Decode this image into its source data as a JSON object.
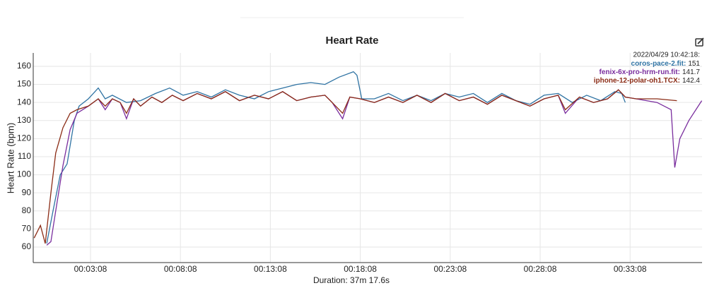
{
  "chart_data": {
    "type": "line",
    "title": "Heart Rate",
    "ylabel": "Heart Rate (bpm)",
    "xlabel": "Duration: 37m 17.6s",
    "xlim": [
      -3,
      2228
    ],
    "ylim": [
      51.4,
      167.4
    ],
    "yticks": [
      60,
      70,
      80,
      90,
      100,
      110,
      120,
      130,
      140,
      150,
      160
    ],
    "xticks": [
      {
        "value": 188,
        "label": "00:03:08"
      },
      {
        "value": 488,
        "label": "00:08:08"
      },
      {
        "value": 788,
        "label": "00:13:08"
      },
      {
        "value": 1088,
        "label": "00:18:08"
      },
      {
        "value": 1388,
        "label": "00:23:08"
      },
      {
        "value": 1688,
        "label": "00:28:08"
      },
      {
        "value": 1988,
        "label": "00:33:08"
      }
    ],
    "grid": true,
    "tooltip_title": "2022/04/29 10:42:18:",
    "series": [
      {
        "name": "coros-pace-2.fit:",
        "color": "#2f73a3",
        "hover_value": 151,
        "x": [
          42,
          63,
          87,
          110,
          134,
          150,
          181,
          214,
          237,
          261,
          308,
          355,
          405,
          452,
          497,
          544,
          591,
          638,
          685,
          735,
          782,
          829,
          876,
          923,
          970,
          1017,
          1065,
          1077,
          1093,
          1135,
          1182,
          1230,
          1277,
          1324,
          1371,
          1418,
          1465,
          1512,
          1560,
          1607,
          1654,
          1701,
          1748,
          1795,
          1843,
          1890,
          1937,
          1960,
          1972
        ],
        "values": [
          62,
          80,
          100,
          106,
          130,
          138,
          142,
          148,
          142,
          144,
          140,
          141,
          145,
          148,
          144,
          146,
          143,
          147,
          144,
          142,
          146,
          148,
          150,
          151,
          150,
          154,
          157,
          155,
          142,
          142,
          145,
          141,
          144,
          141,
          145,
          143,
          145,
          140,
          145,
          141,
          139,
          144,
          145,
          140,
          144,
          141,
          146,
          145,
          140
        ]
      },
      {
        "name": "fenix-6x-pro-hrm-run.fit:",
        "color": "#7a2e9e",
        "hover_value": 141.7,
        "x": [
          42,
          56,
          72,
          96,
          120,
          143,
          181,
          214,
          237,
          261,
          287,
          308,
          332,
          355,
          393,
          426,
          461,
          497,
          544,
          591,
          638,
          685,
          735,
          782,
          829,
          876,
          923,
          970,
          994,
          1029,
          1053,
          1088,
          1135,
          1182,
          1230,
          1277,
          1324,
          1371,
          1418,
          1465,
          1512,
          1560,
          1607,
          1654,
          1701,
          1748,
          1772,
          1819,
          1866,
          1913,
          1949,
          1972,
          2008,
          2078,
          2125,
          2137,
          2154,
          2184,
          2227
        ],
        "values": [
          61,
          63,
          80,
          105,
          125,
          134,
          138,
          142,
          136,
          142,
          140,
          131,
          142,
          138,
          143,
          140,
          144,
          141,
          145,
          142,
          146,
          141,
          144,
          142,
          146,
          141,
          143,
          144,
          140,
          131,
          143,
          142,
          140,
          143,
          140,
          144,
          140,
          145,
          141,
          143,
          139,
          144,
          141,
          138,
          142,
          144,
          134,
          143,
          140,
          142,
          147,
          143,
          142,
          140,
          136,
          104,
          120,
          130,
          141
        ]
      },
      {
        "name": "iphone-12-polar-oh1.TCX:",
        "color": "#8b2c16",
        "hover_value": 142.4,
        "x": [
          0,
          21,
          37,
          56,
          72,
          96,
          120,
          143,
          181,
          214,
          237,
          261,
          287,
          308,
          332,
          355,
          393,
          426,
          461,
          497,
          544,
          591,
          638,
          685,
          735,
          782,
          829,
          876,
          923,
          970,
          994,
          1029,
          1053,
          1088,
          1135,
          1182,
          1230,
          1277,
          1324,
          1371,
          1418,
          1465,
          1512,
          1560,
          1607,
          1654,
          1701,
          1748,
          1772,
          1819,
          1866,
          1913,
          1949,
          1972,
          2008,
          2078,
          2144
        ],
        "values": [
          65,
          72,
          62,
          90,
          112,
          126,
          134,
          136,
          138,
          142,
          138,
          142,
          140,
          134,
          142,
          138,
          143,
          140,
          144,
          141,
          145,
          142,
          146,
          141,
          144,
          142,
          146,
          141,
          143,
          144,
          140,
          134,
          143,
          142,
          140,
          143,
          140,
          144,
          140,
          145,
          141,
          143,
          139,
          144,
          141,
          138,
          142,
          144,
          136,
          143,
          140,
          142,
          147,
          143,
          142,
          142,
          141
        ]
      }
    ]
  }
}
